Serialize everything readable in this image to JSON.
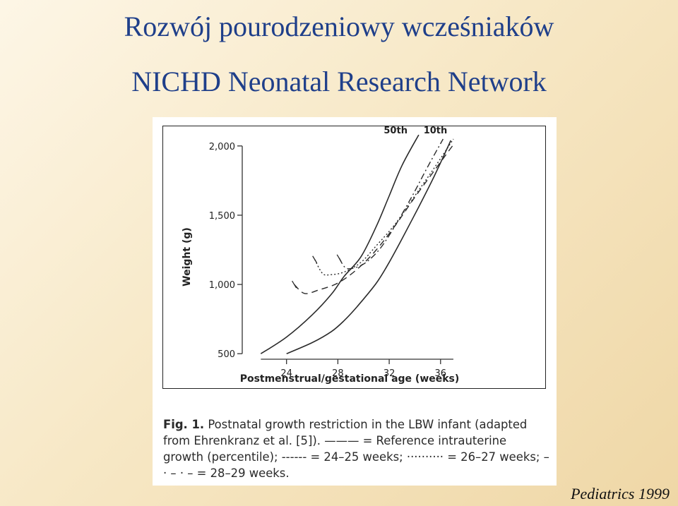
{
  "slide": {
    "title_line1": "Rozwój pourodzeniowy wcześniaków",
    "title_line2": "NICHD Neonatal Research Network",
    "source": "Pediatrics 1999"
  },
  "caption": {
    "fig_label": "Fig. 1.",
    "text_a": "Postnatal growth restriction in the LBW infant (adapted from Ehrenkranz et al. [5]).",
    "solid_symbol": "———",
    "text_b": "= Reference intrauterine growth (percentile);",
    "dashed_symbol": "------",
    "text_c": "= 24–25 weeks;",
    "dotted_symbol": "··········",
    "text_d": "= 26–27 weeks;",
    "dashdot_symbol": "– · – · –",
    "text_e": "= 28–29 weeks."
  },
  "chart_data": {
    "type": "line",
    "xlabel": "Postmenstrual/gestational age (weeks)",
    "ylabel": "Weight (g)",
    "xlim": [
      20,
      43
    ],
    "ylim": [
      450,
      2050
    ],
    "xticks": [
      24,
      28,
      32,
      36
    ],
    "yticks": [
      500,
      1000,
      1500,
      2000
    ],
    "ytick_labels": [
      "500",
      "1,000",
      "1,500",
      "2,000"
    ],
    "series": [
      {
        "name": "50th",
        "style": "solid",
        "x": [
          22.0,
          24,
          26,
          27.5,
          28.5,
          29.8,
          31,
          32,
          33,
          34.3
        ],
        "y": [
          500,
          620,
          780,
          930,
          1060,
          1200,
          1420,
          1640,
          1860,
          2080
        ]
      },
      {
        "name": "10th",
        "style": "solid",
        "x": [
          24.0,
          26,
          27.5,
          28.5,
          29.5,
          31,
          32,
          33,
          34.3,
          35.5,
          36.8
        ],
        "y": [
          500,
          580,
          660,
          740,
          840,
          1010,
          1160,
          1330,
          1560,
          1780,
          2040
        ]
      },
      {
        "name": "",
        "style": "dashed",
        "x": [
          24.6,
          25.4,
          26.5,
          28,
          29.5,
          31,
          32.5,
          34,
          35.5,
          37
        ],
        "y": [
          1000,
          935,
          960,
          1010,
          1110,
          1250,
          1430,
          1630,
          1820,
          2010
        ]
      },
      {
        "name": "",
        "style": "dotted",
        "x": [
          26.2,
          26.8,
          27.4,
          28.5,
          29.8,
          31,
          32.5,
          34,
          35.5,
          37
        ],
        "y": [
          1180,
          1080,
          1070,
          1090,
          1160,
          1280,
          1440,
          1640,
          1840,
          2050
        ]
      },
      {
        "name": "",
        "style": "dashdot",
        "x": [
          28.1,
          28.6,
          29.3,
          30.2,
          31.3,
          32.5,
          33.8,
          35,
          36.2
        ],
        "y": [
          1190,
          1120,
          1120,
          1160,
          1260,
          1430,
          1640,
          1850,
          2050
        ]
      }
    ],
    "series_labels": [
      {
        "text": "50th",
        "x": 32.5,
        "y": 2090
      },
      {
        "text": "10th",
        "x": 35.6,
        "y": 2090
      }
    ]
  }
}
